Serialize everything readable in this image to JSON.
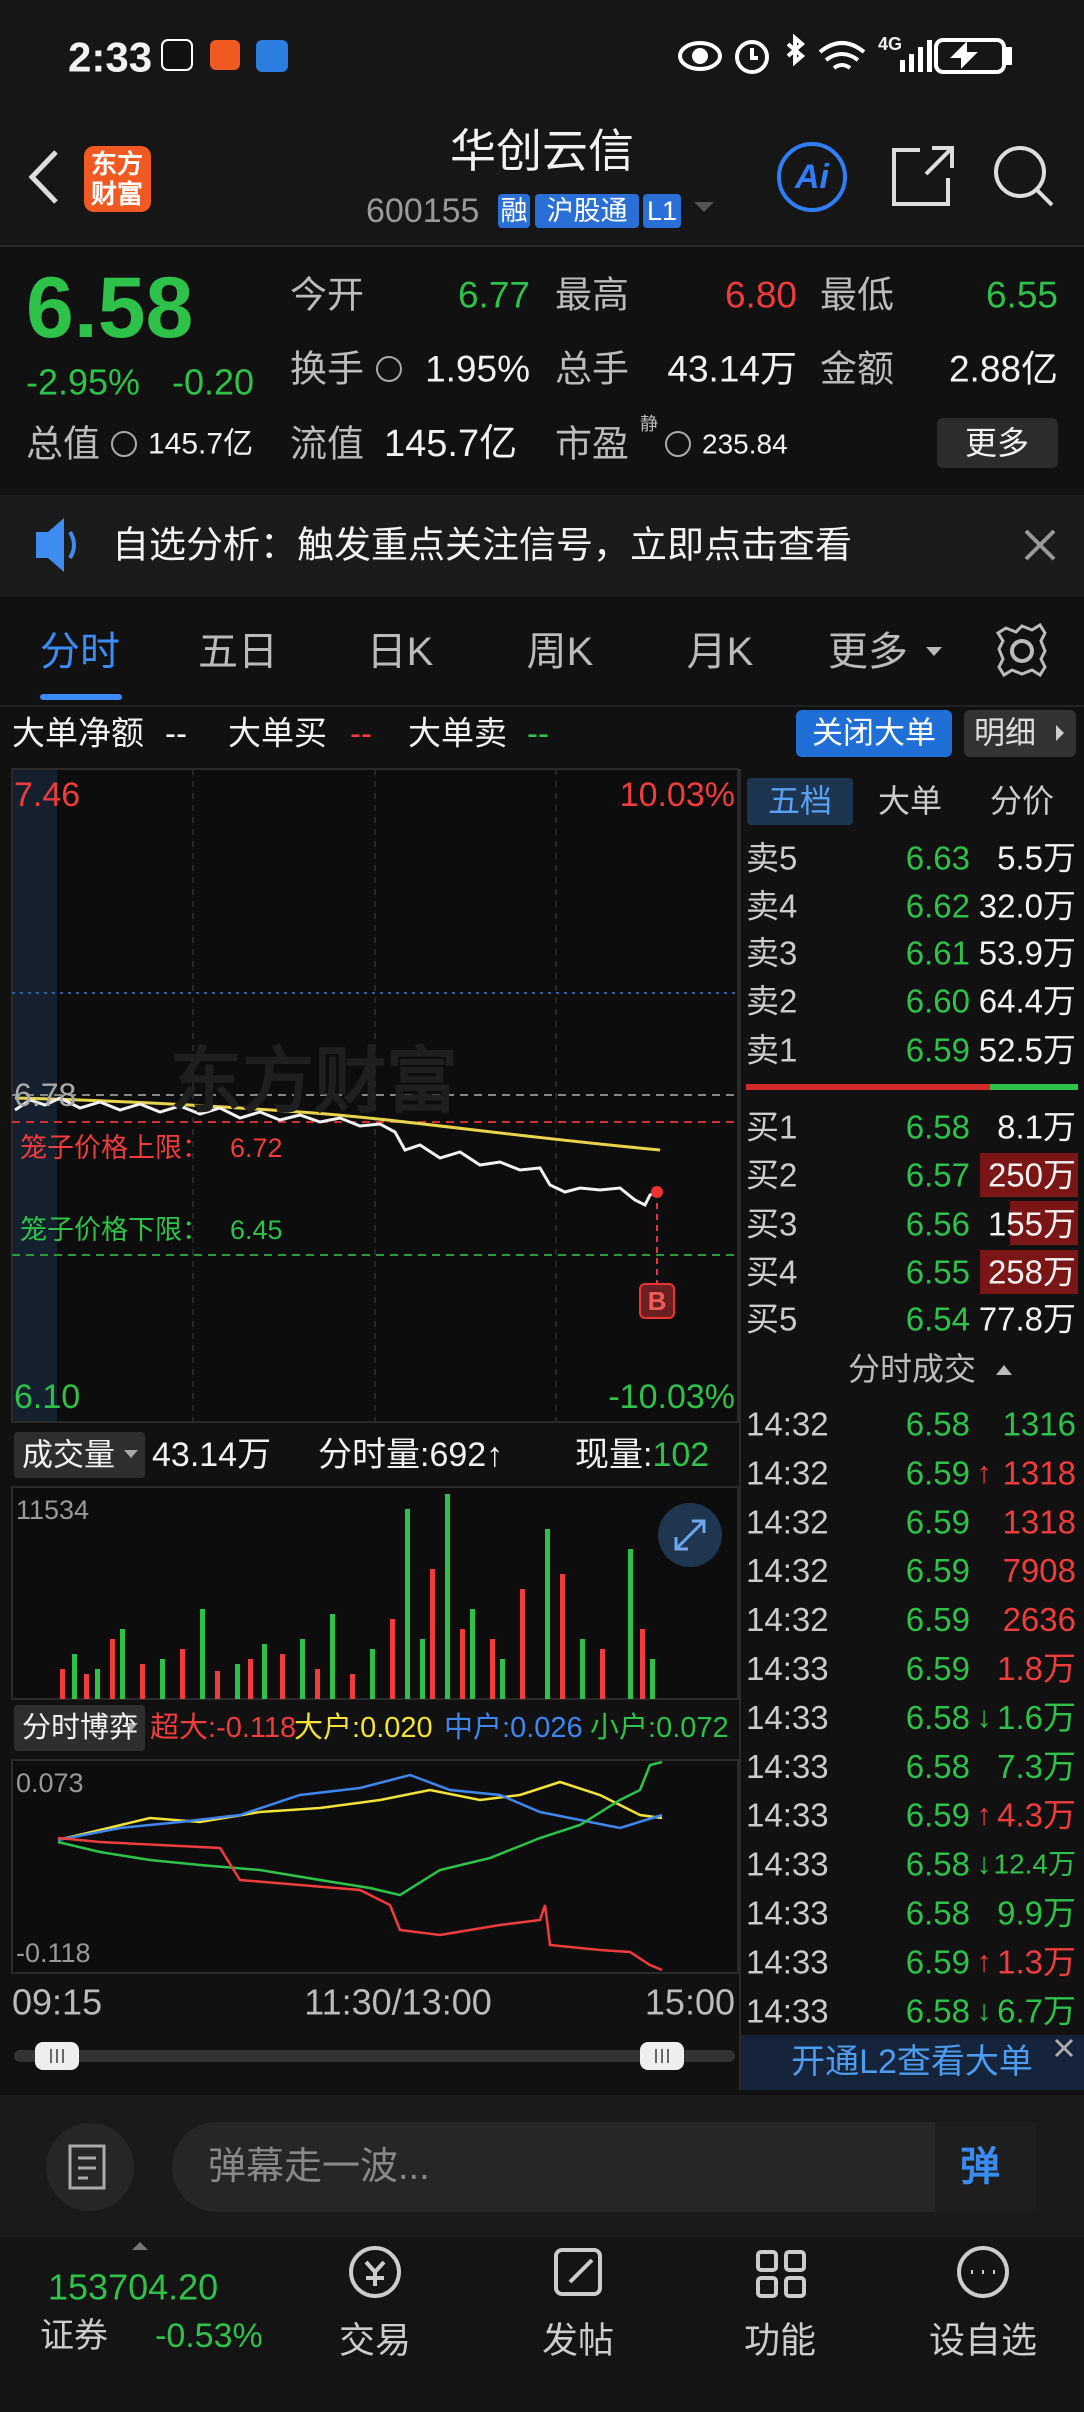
{
  "status_bar": {
    "time": "2:33",
    "network": "4G"
  },
  "header": {
    "logo": [
      "东方",
      "财富"
    ],
    "title": "华创云信",
    "code": "600155",
    "tags": [
      "融",
      "沪股通",
      "L1"
    ],
    "ai": "Ai"
  },
  "quote": {
    "price": "6.58",
    "change_pct": "-2.95%",
    "change": "-0.20",
    "fields": [
      {
        "label": "今开",
        "value": "6.77"
      },
      {
        "label": "最高",
        "value": "6.80"
      },
      {
        "label": "最低",
        "value": "6.55"
      },
      {
        "label": "换手",
        "value": "1.95%"
      },
      {
        "label": "总手",
        "value": "43.14万"
      },
      {
        "label": "金额",
        "value": "2.88亿"
      },
      {
        "label": "总值",
        "value": "145.7亿"
      },
      {
        "label": "流值",
        "value": "145.7亿"
      },
      {
        "label": "市盈",
        "value": "235.84",
        "note": "静"
      }
    ],
    "more": "更多"
  },
  "notice": "自选分析：触发重点关注信号，立即点击查看",
  "tabs": [
    "分时",
    "五日",
    "日K",
    "周K",
    "月K",
    "更多"
  ],
  "big_order": {
    "items": [
      {
        "label": "大单净额",
        "value": "--"
      },
      {
        "label": "大单买",
        "value": "--"
      },
      {
        "label": "大单卖",
        "value": "--"
      }
    ],
    "close": "关闭大单",
    "detail": "明细"
  },
  "intraday": {
    "high": "7.46",
    "low": "6.10",
    "high_pct": "10.03%",
    "low_pct": "-10.03%",
    "prev_close": "6.78",
    "upper_limit": {
      "label": "笼子价格上限：",
      "value": "6.72"
    },
    "lower_limit": {
      "label": "笼子价格下限：",
      "value": "6.45"
    },
    "marker": "B",
    "watermark": "东方财富"
  },
  "volume": {
    "selector": "成交量",
    "total": "43.14万",
    "minute": "分时量:692↑",
    "current_label": "现量:",
    "current": "102",
    "max": "11534"
  },
  "game": {
    "selector": "分时博弈",
    "items": [
      {
        "label": "超大:",
        "value": "-0.118",
        "color": "#f03c3c"
      },
      {
        "label": "大户:",
        "value": "0.020",
        "color": "#f2e23a"
      },
      {
        "label": "中户:",
        "value": "0.026",
        "color": "#3f86f0"
      },
      {
        "label": "小户:",
        "value": "0.072",
        "color": "#2ec24a"
      }
    ],
    "max": "0.073",
    "min": "-0.118"
  },
  "time_axis": [
    "09:15",
    "11:30/13:00",
    "15:00"
  ],
  "order_book": {
    "tabs": [
      "五档",
      "大单",
      "分价"
    ],
    "asks": [
      {
        "label": "卖5",
        "price": "6.63",
        "volume": "5.5万"
      },
      {
        "label": "卖4",
        "price": "6.62",
        "volume": "32.0万"
      },
      {
        "label": "卖3",
        "price": "6.61",
        "volume": "53.9万"
      },
      {
        "label": "卖2",
        "price": "6.60",
        "volume": "64.4万"
      },
      {
        "label": "卖1",
        "price": "6.59",
        "volume": "52.5万"
      }
    ],
    "bids": [
      {
        "label": "买1",
        "price": "6.58",
        "volume": "8.1万"
      },
      {
        "label": "买2",
        "price": "6.57",
        "volume": "250万"
      },
      {
        "label": "买3",
        "price": "6.56",
        "volume": "155万"
      },
      {
        "label": "买4",
        "price": "6.55",
        "volume": "258万"
      },
      {
        "label": "买5",
        "price": "6.54",
        "volume": "77.8万"
      }
    ]
  },
  "trades": {
    "title": "分时成交",
    "rows": [
      {
        "time": "14:32",
        "price": "6.58",
        "volume": "1316",
        "side": "sell"
      },
      {
        "time": "14:32",
        "price": "6.59",
        "arrow": "↑",
        "volume": "1318",
        "side": "buy"
      },
      {
        "time": "14:32",
        "price": "6.59",
        "volume": "1318",
        "side": "buy"
      },
      {
        "time": "14:32",
        "price": "6.59",
        "volume": "7908",
        "side": "buy"
      },
      {
        "time": "14:32",
        "price": "6.59",
        "volume": "2636",
        "side": "buy"
      },
      {
        "time": "14:33",
        "price": "6.59",
        "volume": "1.8万",
        "side": "buy"
      },
      {
        "time": "14:33",
        "price": "6.58",
        "arrow": "↓",
        "volume": "1.6万",
        "side": "sell"
      },
      {
        "time": "14:33",
        "price": "6.58",
        "volume": "7.3万",
        "side": "sell"
      },
      {
        "time": "14:33",
        "price": "6.59",
        "arrow": "↑",
        "volume": "4.3万",
        "side": "buy"
      },
      {
        "time": "14:33",
        "price": "6.58",
        "arrow": "↓",
        "volume": "12.4万",
        "side": "sell"
      },
      {
        "time": "14:33",
        "price": "6.58",
        "volume": "9.9万",
        "side": "sell"
      },
      {
        "time": "14:33",
        "price": "6.59",
        "arrow": "↑",
        "volume": "1.3万",
        "side": "buy"
      },
      {
        "time": "14:33",
        "price": "6.58",
        "arrow": "↓",
        "volume": "6.7万",
        "side": "sell"
      }
    ]
  },
  "l2_banner": "开通L2查看大单",
  "comment": {
    "placeholder": "弹幕走一波...",
    "button": "弹"
  },
  "bottom_nav": {
    "index": "153704.20",
    "broker": "证券",
    "index_change": "-0.53%",
    "items": [
      "交易",
      "发帖",
      "功能",
      "设自选"
    ]
  }
}
